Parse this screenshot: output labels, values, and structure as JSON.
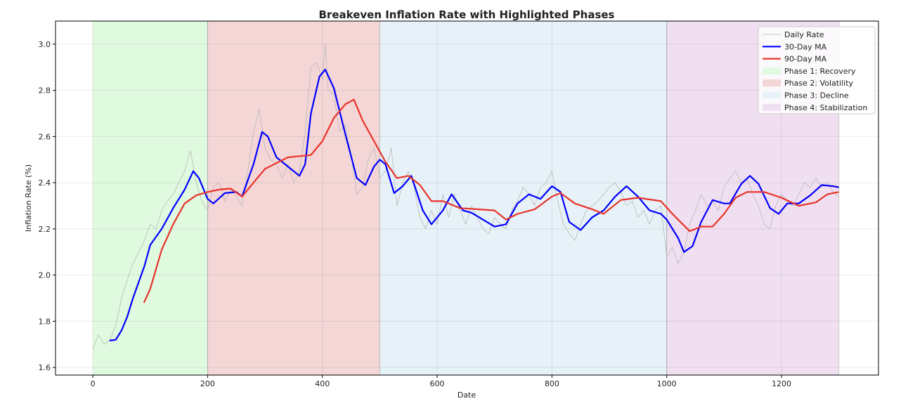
{
  "chart_data": {
    "type": "line",
    "title": "Breakeven Inflation Rate with Highlighted Phases",
    "xlabel": "Date",
    "ylabel": "Inflation Rate (%)",
    "xlim": [
      -65,
      1369
    ],
    "ylim": [
      1.567,
      3.1
    ],
    "xticks": [
      0,
      200,
      400,
      600,
      800,
      1000,
      1200
    ],
    "yticks": [
      1.6,
      1.8,
      2.0,
      2.2,
      2.4,
      2.6,
      2.8,
      3.0
    ],
    "ytick_labels": [
      "1.6",
      "1.8",
      "2.0",
      "2.2",
      "2.4",
      "2.6",
      "2.8",
      "3.0"
    ],
    "grid": true,
    "legend_placement": "top-right",
    "phases": [
      {
        "name": "Phase 1: Recovery",
        "start": 0,
        "end": 200,
        "color": "#e0fae0"
      },
      {
        "name": "Phase 2: Volatility",
        "start": 200,
        "end": 500,
        "color": "#f4d6d6"
      },
      {
        "name": "Phase 3: Decline",
        "start": 500,
        "end": 1000,
        "color": "#e6f1f8"
      },
      {
        "name": "Phase 4: Stabilization",
        "start": 1000,
        "end": 1300,
        "color": "#f0dff0"
      }
    ],
    "series": [
      {
        "name": "Daily Rate",
        "color": "#b8b8b8",
        "width": 0.8,
        "x": [
          0,
          10,
          20,
          30,
          40,
          50,
          60,
          70,
          80,
          90,
          100,
          110,
          120,
          130,
          140,
          150,
          160,
          170,
          180,
          190,
          200,
          210,
          220,
          230,
          240,
          250,
          260,
          270,
          280,
          290,
          300,
          310,
          320,
          330,
          340,
          350,
          360,
          370,
          380,
          390,
          400,
          405,
          410,
          420,
          430,
          440,
          450,
          460,
          470,
          480,
          490,
          500,
          510,
          520,
          530,
          540,
          550,
          560,
          570,
          580,
          590,
          600,
          610,
          620,
          630,
          640,
          650,
          660,
          670,
          680,
          690,
          700,
          710,
          720,
          730,
          740,
          750,
          760,
          770,
          780,
          790,
          800,
          810,
          820,
          830,
          840,
          850,
          860,
          870,
          880,
          890,
          900,
          910,
          920,
          930,
          940,
          950,
          960,
          970,
          980,
          990,
          1000,
          1010,
          1020,
          1030,
          1040,
          1050,
          1060,
          1070,
          1080,
          1090,
          1100,
          1110,
          1120,
          1130,
          1140,
          1150,
          1160,
          1170,
          1180,
          1190,
          1200,
          1210,
          1220,
          1230,
          1240,
          1250,
          1260,
          1270,
          1280,
          1290,
          1300
        ],
        "y": [
          1.68,
          1.74,
          1.7,
          1.72,
          1.78,
          1.9,
          1.98,
          2.05,
          2.1,
          2.15,
          2.22,
          2.2,
          2.28,
          2.32,
          2.35,
          2.4,
          2.45,
          2.54,
          2.4,
          2.32,
          2.28,
          2.38,
          2.4,
          2.32,
          2.37,
          2.34,
          2.3,
          2.45,
          2.62,
          2.72,
          2.55,
          2.5,
          2.48,
          2.42,
          2.48,
          2.4,
          2.45,
          2.62,
          2.9,
          2.92,
          2.85,
          3.0,
          2.8,
          2.78,
          2.62,
          2.65,
          2.52,
          2.35,
          2.38,
          2.5,
          2.55,
          2.42,
          2.45,
          2.55,
          2.3,
          2.4,
          2.45,
          2.38,
          2.25,
          2.2,
          2.28,
          2.22,
          2.35,
          2.25,
          2.35,
          2.28,
          2.22,
          2.3,
          2.25,
          2.2,
          2.18,
          2.25,
          2.22,
          2.2,
          2.28,
          2.32,
          2.38,
          2.35,
          2.3,
          2.38,
          2.4,
          2.45,
          2.32,
          2.22,
          2.18,
          2.15,
          2.22,
          2.28,
          2.3,
          2.32,
          2.35,
          2.38,
          2.4,
          2.36,
          2.3,
          2.32,
          2.25,
          2.28,
          2.22,
          2.28,
          2.3,
          2.08,
          2.12,
          2.05,
          2.1,
          2.22,
          2.28,
          2.35,
          2.3,
          2.32,
          2.28,
          2.38,
          2.42,
          2.45,
          2.4,
          2.42,
          2.35,
          2.3,
          2.22,
          2.2,
          2.3,
          2.35,
          2.32,
          2.3,
          2.35,
          2.4,
          2.38,
          2.42,
          2.38,
          2.4,
          2.36,
          2.34
        ]
      },
      {
        "name": "30-Day MA",
        "color": "#0000ff",
        "width": 2.2,
        "x": [
          29,
          40,
          50,
          60,
          70,
          80,
          90,
          100,
          120,
          140,
          160,
          175,
          185,
          200,
          210,
          230,
          250,
          260,
          280,
          295,
          305,
          320,
          340,
          360,
          370,
          380,
          395,
          405,
          420,
          440,
          460,
          475,
          490,
          500,
          510,
          525,
          540,
          555,
          575,
          590,
          610,
          625,
          645,
          660,
          700,
          720,
          740,
          760,
          780,
          800,
          815,
          830,
          850,
          870,
          890,
          910,
          930,
          950,
          970,
          990,
          1000,
          1020,
          1030,
          1045,
          1060,
          1080,
          1100,
          1110,
          1130,
          1145,
          1160,
          1180,
          1195,
          1210,
          1230,
          1250,
          1270,
          1290,
          1300
        ],
        "y": [
          1.716,
          1.72,
          1.76,
          1.82,
          1.9,
          1.97,
          2.04,
          2.13,
          2.2,
          2.29,
          2.37,
          2.45,
          2.42,
          2.33,
          2.31,
          2.355,
          2.36,
          2.34,
          2.48,
          2.62,
          2.6,
          2.51,
          2.47,
          2.43,
          2.48,
          2.7,
          2.86,
          2.89,
          2.81,
          2.61,
          2.42,
          2.39,
          2.47,
          2.5,
          2.48,
          2.355,
          2.385,
          2.43,
          2.28,
          2.22,
          2.28,
          2.35,
          2.28,
          2.27,
          2.21,
          2.22,
          2.31,
          2.35,
          2.33,
          2.385,
          2.36,
          2.23,
          2.195,
          2.25,
          2.28,
          2.34,
          2.385,
          2.34,
          2.28,
          2.265,
          2.24,
          2.16,
          2.1,
          2.125,
          2.23,
          2.325,
          2.31,
          2.31,
          2.395,
          2.43,
          2.395,
          2.29,
          2.265,
          2.31,
          2.31,
          2.345,
          2.39,
          2.385,
          2.38
        ]
      },
      {
        "name": "90-Day MA",
        "color": "#e8332a",
        "width": 2.2,
        "x": [
          89,
          100,
          120,
          140,
          160,
          180,
          200,
          220,
          240,
          260,
          280,
          300,
          320,
          340,
          360,
          380,
          400,
          420,
          440,
          455,
          470,
          490,
          510,
          530,
          550,
          570,
          590,
          610,
          640,
          670,
          700,
          720,
          740,
          770,
          800,
          815,
          840,
          870,
          890,
          920,
          950,
          990,
          1010,
          1040,
          1060,
          1080,
          1100,
          1120,
          1140,
          1170,
          1200,
          1230,
          1260,
          1280,
          1300
        ],
        "y": [
          1.88,
          1.94,
          2.11,
          2.22,
          2.31,
          2.345,
          2.36,
          2.37,
          2.375,
          2.34,
          2.4,
          2.46,
          2.485,
          2.51,
          2.515,
          2.52,
          2.58,
          2.68,
          2.74,
          2.76,
          2.67,
          2.58,
          2.49,
          2.42,
          2.43,
          2.39,
          2.32,
          2.32,
          2.29,
          2.285,
          2.28,
          2.24,
          2.265,
          2.285,
          2.34,
          2.355,
          2.31,
          2.285,
          2.265,
          2.325,
          2.335,
          2.32,
          2.265,
          2.19,
          2.21,
          2.21,
          2.265,
          2.335,
          2.36,
          2.36,
          2.335,
          2.3,
          2.315,
          2.35,
          2.36
        ]
      }
    ]
  }
}
